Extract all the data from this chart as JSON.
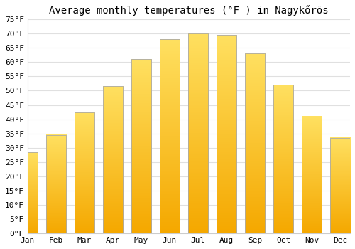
{
  "title": "Average monthly temperatures (°F ) in Nagykőrös",
  "months": [
    "Jan",
    "Feb",
    "Mar",
    "Apr",
    "May",
    "Jun",
    "Jul",
    "Aug",
    "Sep",
    "Oct",
    "Nov",
    "Dec"
  ],
  "values": [
    28.5,
    34.5,
    42.5,
    51.5,
    61.0,
    68.0,
    70.0,
    69.5,
    63.0,
    52.0,
    41.0,
    33.5
  ],
  "bar_color_bottom": "#F5A800",
  "bar_color_top": "#FFE060",
  "bar_edge_color": "#AAAAAA",
  "ylim": [
    0,
    75
  ],
  "yticks": [
    0,
    5,
    10,
    15,
    20,
    25,
    30,
    35,
    40,
    45,
    50,
    55,
    60,
    65,
    70,
    75
  ],
  "ytick_labels": [
    "0°F",
    "5°F",
    "10°F",
    "15°F",
    "20°F",
    "25°F",
    "30°F",
    "35°F",
    "40°F",
    "45°F",
    "50°F",
    "55°F",
    "60°F",
    "65°F",
    "70°F",
    "75°F"
  ],
  "grid_color": "#E0E0E0",
  "background_color": "#FFFFFF",
  "title_fontsize": 10,
  "tick_fontsize": 8,
  "bar_width": 0.7,
  "n_gradient_steps": 100
}
